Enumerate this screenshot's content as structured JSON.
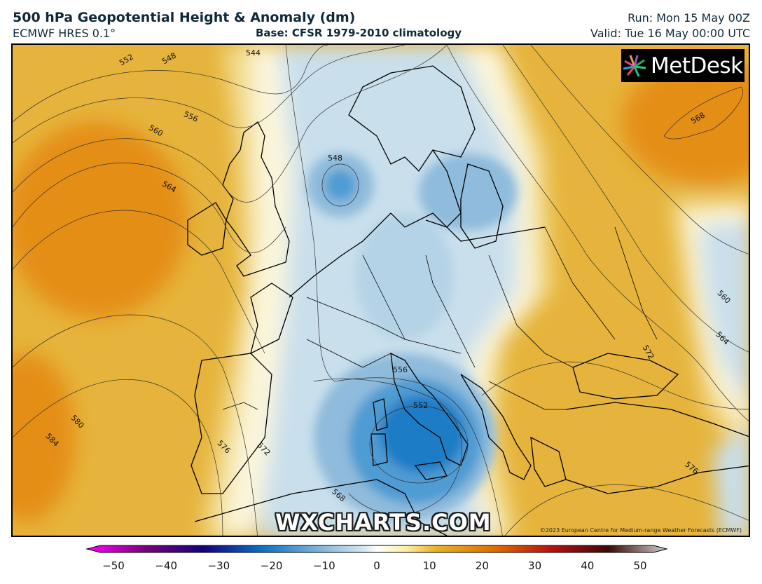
{
  "header": {
    "title": "500 hPa Geopotential Height & Anomaly (dm)",
    "subtitle": "ECMWF HRES 0.1°",
    "base": "Base: CFSR 1979-2010 climatology",
    "run": "Run: Mon 15 May 00Z",
    "valid": "Valid: Tue 16 May 00:00 UTC"
  },
  "logo": {
    "text": "MetDesk",
    "icon": "metdesk-pinwheel-icon"
  },
  "watermark": "WXCHARTS.COM",
  "copyright": "©2023 European Centre for Medium-range Weather Forecasts (ECMWF)",
  "contour_labels": [
    "552",
    "548",
    "544",
    "556",
    "560",
    "564",
    "548",
    "568",
    "560",
    "564",
    "572",
    "556",
    "552",
    "580",
    "584",
    "576",
    "572",
    "568",
    "576"
  ],
  "colorbar": {
    "ticks": [
      "−50",
      "−40",
      "−30",
      "−20",
      "−10",
      "0",
      "10",
      "20",
      "30",
      "40",
      "50"
    ],
    "min": -50,
    "max": 50,
    "colors": {
      "neg_extreme": "#ff00ff",
      "neg_deep": "#3a007a",
      "neg_blue": "#0b6fc0",
      "neg_light": "#cfe4ef",
      "zero": "#ffffff",
      "pos_light": "#f6e08a",
      "pos_mid": "#e8a300",
      "pos_orange": "#e07000",
      "pos_red": "#b81010",
      "pos_dark": "#3a0a0a",
      "pos_extreme": "#c8c8c8"
    }
  },
  "map_colors": {
    "positive_anomaly": "#e6b43c",
    "strong_positive": "#e58e14",
    "weak_positive": "#f3dc8f",
    "neutral": "#fbf6dc",
    "weak_negative": "#c9dfec",
    "negative": "#8fbbdc",
    "strong_negative": "#1b7cc6",
    "coastline": "#000000",
    "contour": "#333333"
  }
}
